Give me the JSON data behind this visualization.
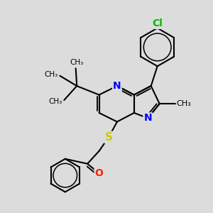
{
  "background_color": "#dcdcdc",
  "bond_color": "#000000",
  "bond_width": 1.5,
  "figsize": [
    3.0,
    3.0
  ],
  "dpi": 100,
  "xlim": [
    0,
    10
  ],
  "ylim": [
    0,
    10
  ],
  "atoms": {
    "Cl_color": "#00bb00",
    "N_color": "#0000ff",
    "S_color": "#cccc00",
    "O_color": "#ff2200"
  }
}
